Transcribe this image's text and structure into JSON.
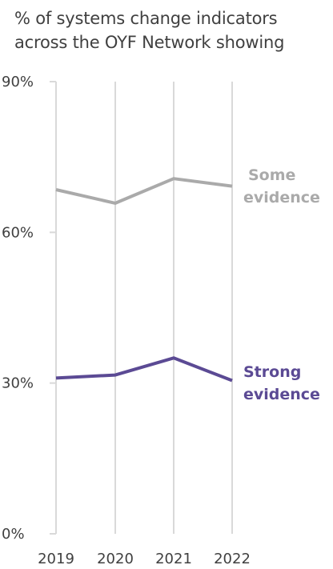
{
  "chart_data": {
    "type": "line",
    "title": "% of systems change indicators across the OYF Network showing",
    "title_lines": [
      "% of systems change indicators",
      "across the OYF Network showing"
    ],
    "categories": [
      "2019",
      "2020",
      "2021",
      "2022"
    ],
    "yticks": [
      "0%",
      "30%",
      "60%",
      "90%"
    ],
    "ytick_values": [
      0,
      30,
      60,
      90
    ],
    "ylim": [
      0,
      90
    ],
    "grid": "vertical",
    "series": [
      {
        "name": "Some evidence",
        "label_lines": [
          "Some",
          "evidence"
        ],
        "color": "#aaaaaa",
        "values": [
          68.5,
          65.8,
          70.7,
          69.2
        ]
      },
      {
        "name": "Strong evidence",
        "label_lines": [
          "Strong",
          "evidence"
        ],
        "color": "#5b4a94",
        "values": [
          31.0,
          31.6,
          35.0,
          30.5
        ]
      }
    ]
  }
}
